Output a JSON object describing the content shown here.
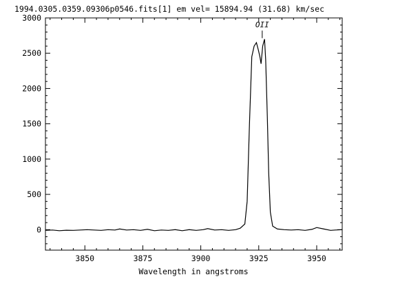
{
  "chart_data": {
    "type": "line",
    "title": "1994.0305.0359.09306p0546.fits[1]  em vel= 15894.94 (31.68) km/sec",
    "xlabel": "Wavelength in angstroms",
    "ylabel": "",
    "xlim": [
      3833,
      3961
    ],
    "ylim": [
      -290,
      3000
    ],
    "x_ticks": [
      3850,
      3875,
      3900,
      3925,
      3950
    ],
    "x_tick_labels": [
      "3850",
      "3875",
      "3900",
      "3925",
      "3950"
    ],
    "y_ticks": [
      0,
      500,
      1000,
      1500,
      2000,
      2500,
      3000
    ],
    "y_tick_labels": [
      "0",
      "500",
      "1000",
      "1500",
      "2000",
      "2500",
      "3000"
    ],
    "grid": false,
    "annotations": [
      {
        "text": "OII",
        "x": 3926.5,
        "y": 2850
      }
    ],
    "series": [
      {
        "x": [
          3833,
          3836,
          3839,
          3842,
          3845,
          3848,
          3851,
          3854,
          3857,
          3860,
          3863,
          3865,
          3868,
          3871,
          3874,
          3877,
          3880,
          3883,
          3886,
          3889,
          3892,
          3895,
          3898,
          3901,
          3903,
          3906,
          3909,
          3912,
          3915,
          3917,
          3919,
          3920,
          3921,
          3922,
          3923,
          3924,
          3924.8,
          3925.5,
          3926,
          3926.7,
          3927.5,
          3928,
          3928.7,
          3929.3,
          3930,
          3931,
          3933,
          3936,
          3939,
          3942,
          3945,
          3948,
          3950,
          3953,
          3956,
          3958,
          3961
        ],
        "y": [
          -10,
          -5,
          -15,
          -8,
          -10,
          -5,
          0,
          -5,
          -10,
          0,
          -5,
          10,
          -5,
          0,
          -10,
          5,
          -15,
          -5,
          -10,
          0,
          -15,
          0,
          -10,
          0,
          15,
          -5,
          0,
          -10,
          0,
          20,
          80,
          400,
          1500,
          2450,
          2600,
          2650,
          2550,
          2450,
          2350,
          2600,
          2700,
          2400,
          1600,
          800,
          250,
          50,
          10,
          0,
          -5,
          0,
          -10,
          5,
          30,
          10,
          -10,
          -5,
          0
        ]
      }
    ]
  }
}
